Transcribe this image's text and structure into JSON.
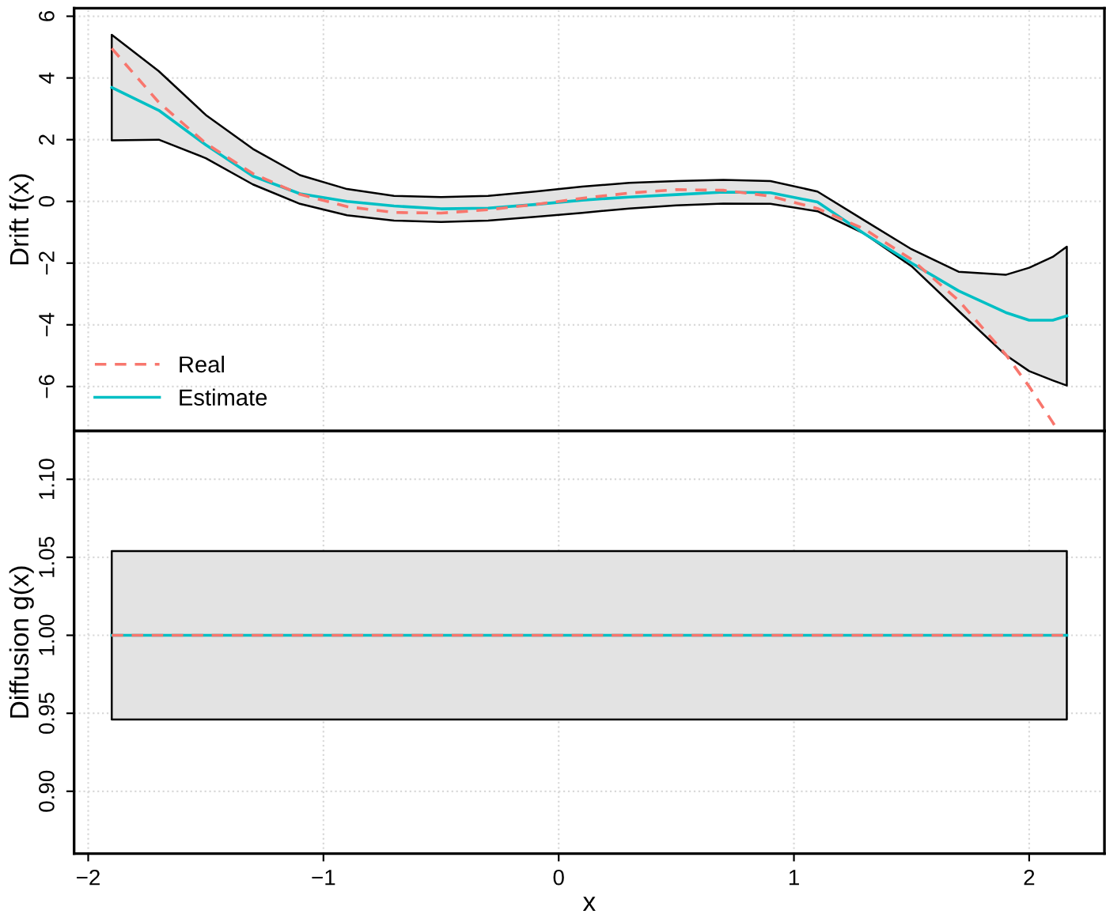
{
  "chart_data": [
    {
      "type": "line",
      "ylabel": "Drift f(x)",
      "xlim": [
        -2.06,
        2.32
      ],
      "ylim": [
        -7.44,
        6.26
      ],
      "xticks": [
        -2,
        -1,
        0,
        1,
        2
      ],
      "yticks": [
        {
          "value": -6,
          "label": "−6"
        },
        {
          "value": -4,
          "label": "−4"
        },
        {
          "value": -2,
          "label": "−2"
        },
        0,
        2,
        4,
        6
      ],
      "tick_labels": "y",
      "grid": true,
      "legend": "bottom left",
      "series": [
        {
          "name": "Real",
          "color": "#f8766d",
          "line_style": "dashed",
          "x": [
            -1.9,
            -1.7,
            -1.5,
            -1.3,
            -1.1,
            -0.9,
            -0.7,
            -0.5,
            -0.3,
            -0.1,
            0.1,
            0.3,
            0.5,
            0.7,
            0.9,
            1.1,
            1.3,
            1.5,
            1.7,
            1.9,
            2.0,
            2.1,
            2.12
          ],
          "values": [
            4.96,
            3.21,
            1.88,
            0.9,
            0.23,
            -0.17,
            -0.36,
            -0.38,
            -0.27,
            -0.1,
            0.1,
            0.27,
            0.38,
            0.36,
            0.17,
            -0.23,
            -0.9,
            -1.88,
            -3.21,
            -4.96,
            -6.0,
            -7.16,
            -7.41
          ]
        },
        {
          "name": "Estimate",
          "color": "#00bfc4",
          "line_style": "solid",
          "x": [
            -1.9,
            -1.7,
            -1.5,
            -1.3,
            -1.1,
            -0.9,
            -0.7,
            -0.5,
            -0.3,
            -0.1,
            0.1,
            0.3,
            0.5,
            0.7,
            0.9,
            1.1,
            1.3,
            1.5,
            1.7,
            1.9,
            2.0,
            2.1,
            2.16
          ],
          "values": [
            3.69,
            2.95,
            1.83,
            0.82,
            0.25,
            0.0,
            -0.15,
            -0.24,
            -0.22,
            -0.1,
            0.04,
            0.14,
            0.22,
            0.3,
            0.28,
            -0.02,
            -1.05,
            -2.0,
            -2.9,
            -3.6,
            -3.85,
            -3.85,
            -3.71
          ],
          "upper": [
            5.4,
            4.22,
            2.8,
            1.7,
            0.85,
            0.4,
            0.18,
            0.14,
            0.18,
            0.32,
            0.48,
            0.6,
            0.66,
            0.7,
            0.66,
            0.32,
            -0.62,
            -1.55,
            -2.28,
            -2.38,
            -2.15,
            -1.8,
            -1.47
          ],
          "lower": [
            1.98,
            2.0,
            1.4,
            0.55,
            -0.08,
            -0.45,
            -0.62,
            -0.67,
            -0.62,
            -0.5,
            -0.37,
            -0.23,
            -0.13,
            -0.07,
            -0.08,
            -0.32,
            -1.05,
            -2.1,
            -3.55,
            -4.98,
            -5.5,
            -5.8,
            -5.97
          ]
        }
      ]
    },
    {
      "type": "line",
      "xlabel": "x",
      "ylabel": "Diffusion g(x)",
      "xlim": [
        -2.06,
        2.32
      ],
      "ylim": [
        0.86,
        1.131
      ],
      "xticks": [
        {
          "value": -2,
          "label": "−2"
        },
        {
          "value": -1,
          "label": "−1"
        },
        0,
        1,
        2
      ],
      "yticks": [
        {
          "value": 0.9,
          "label": "0.90"
        },
        {
          "value": 0.95,
          "label": "0.95"
        },
        {
          "value": 1.0,
          "label": "1.00"
        },
        {
          "value": 1.05,
          "label": "1.05"
        },
        {
          "value": 1.1,
          "label": "1.10"
        }
      ],
      "grid": true,
      "series": [
        {
          "color": "#f8766d",
          "line_style": "dashed",
          "x": [
            -1.9,
            2.16
          ],
          "values": [
            1.0,
            1.0
          ]
        },
        {
          "color": "#00bfc4",
          "line_style": "solid",
          "x": [
            -1.9,
            2.16
          ],
          "values": [
            1.0,
            1.0
          ],
          "upper": [
            1.054,
            1.054
          ],
          "lower": [
            0.946,
            0.946
          ]
        }
      ]
    }
  ]
}
